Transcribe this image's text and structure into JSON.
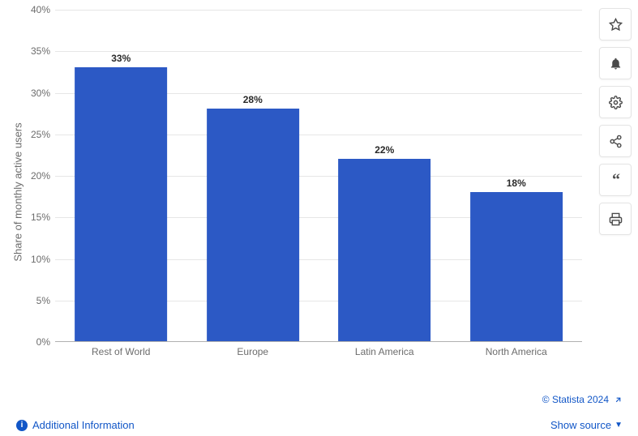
{
  "chart": {
    "type": "bar",
    "y_axis_title": "Share of monthly active users",
    "categories": [
      "Rest of World",
      "Europe",
      "Latin America",
      "North America"
    ],
    "values": [
      33,
      28,
      22,
      18
    ],
    "value_labels": [
      "33%",
      "28%",
      "22%",
      "18%"
    ],
    "bar_color": "#2c59c5",
    "ylim": [
      0,
      40
    ],
    "ytick_step": 5,
    "yticks": [
      0,
      5,
      10,
      15,
      20,
      25,
      30,
      35,
      40
    ],
    "ytick_labels": [
      "0%",
      "5%",
      "10%",
      "15%",
      "20%",
      "25%",
      "30%",
      "35%",
      "40%"
    ],
    "grid_color": "#e6e6e6",
    "background_color": "#ffffff",
    "axis_label_color": "#6c6c6c",
    "value_label_color": "#2a2a2a",
    "axis_label_fontsize": 12,
    "value_label_fontsize": 12,
    "bar_width_ratio": 0.7
  },
  "toolbar": {
    "items": [
      {
        "name": "star",
        "label": "Favorite"
      },
      {
        "name": "bell",
        "label": "Alert"
      },
      {
        "name": "gear",
        "label": "Settings"
      },
      {
        "name": "share",
        "label": "Share"
      },
      {
        "name": "quote",
        "label": "Cite"
      },
      {
        "name": "print",
        "label": "Print"
      }
    ]
  },
  "footer": {
    "copyright": "© Statista 2024",
    "additional_info": "Additional Information",
    "show_source": "Show source"
  }
}
